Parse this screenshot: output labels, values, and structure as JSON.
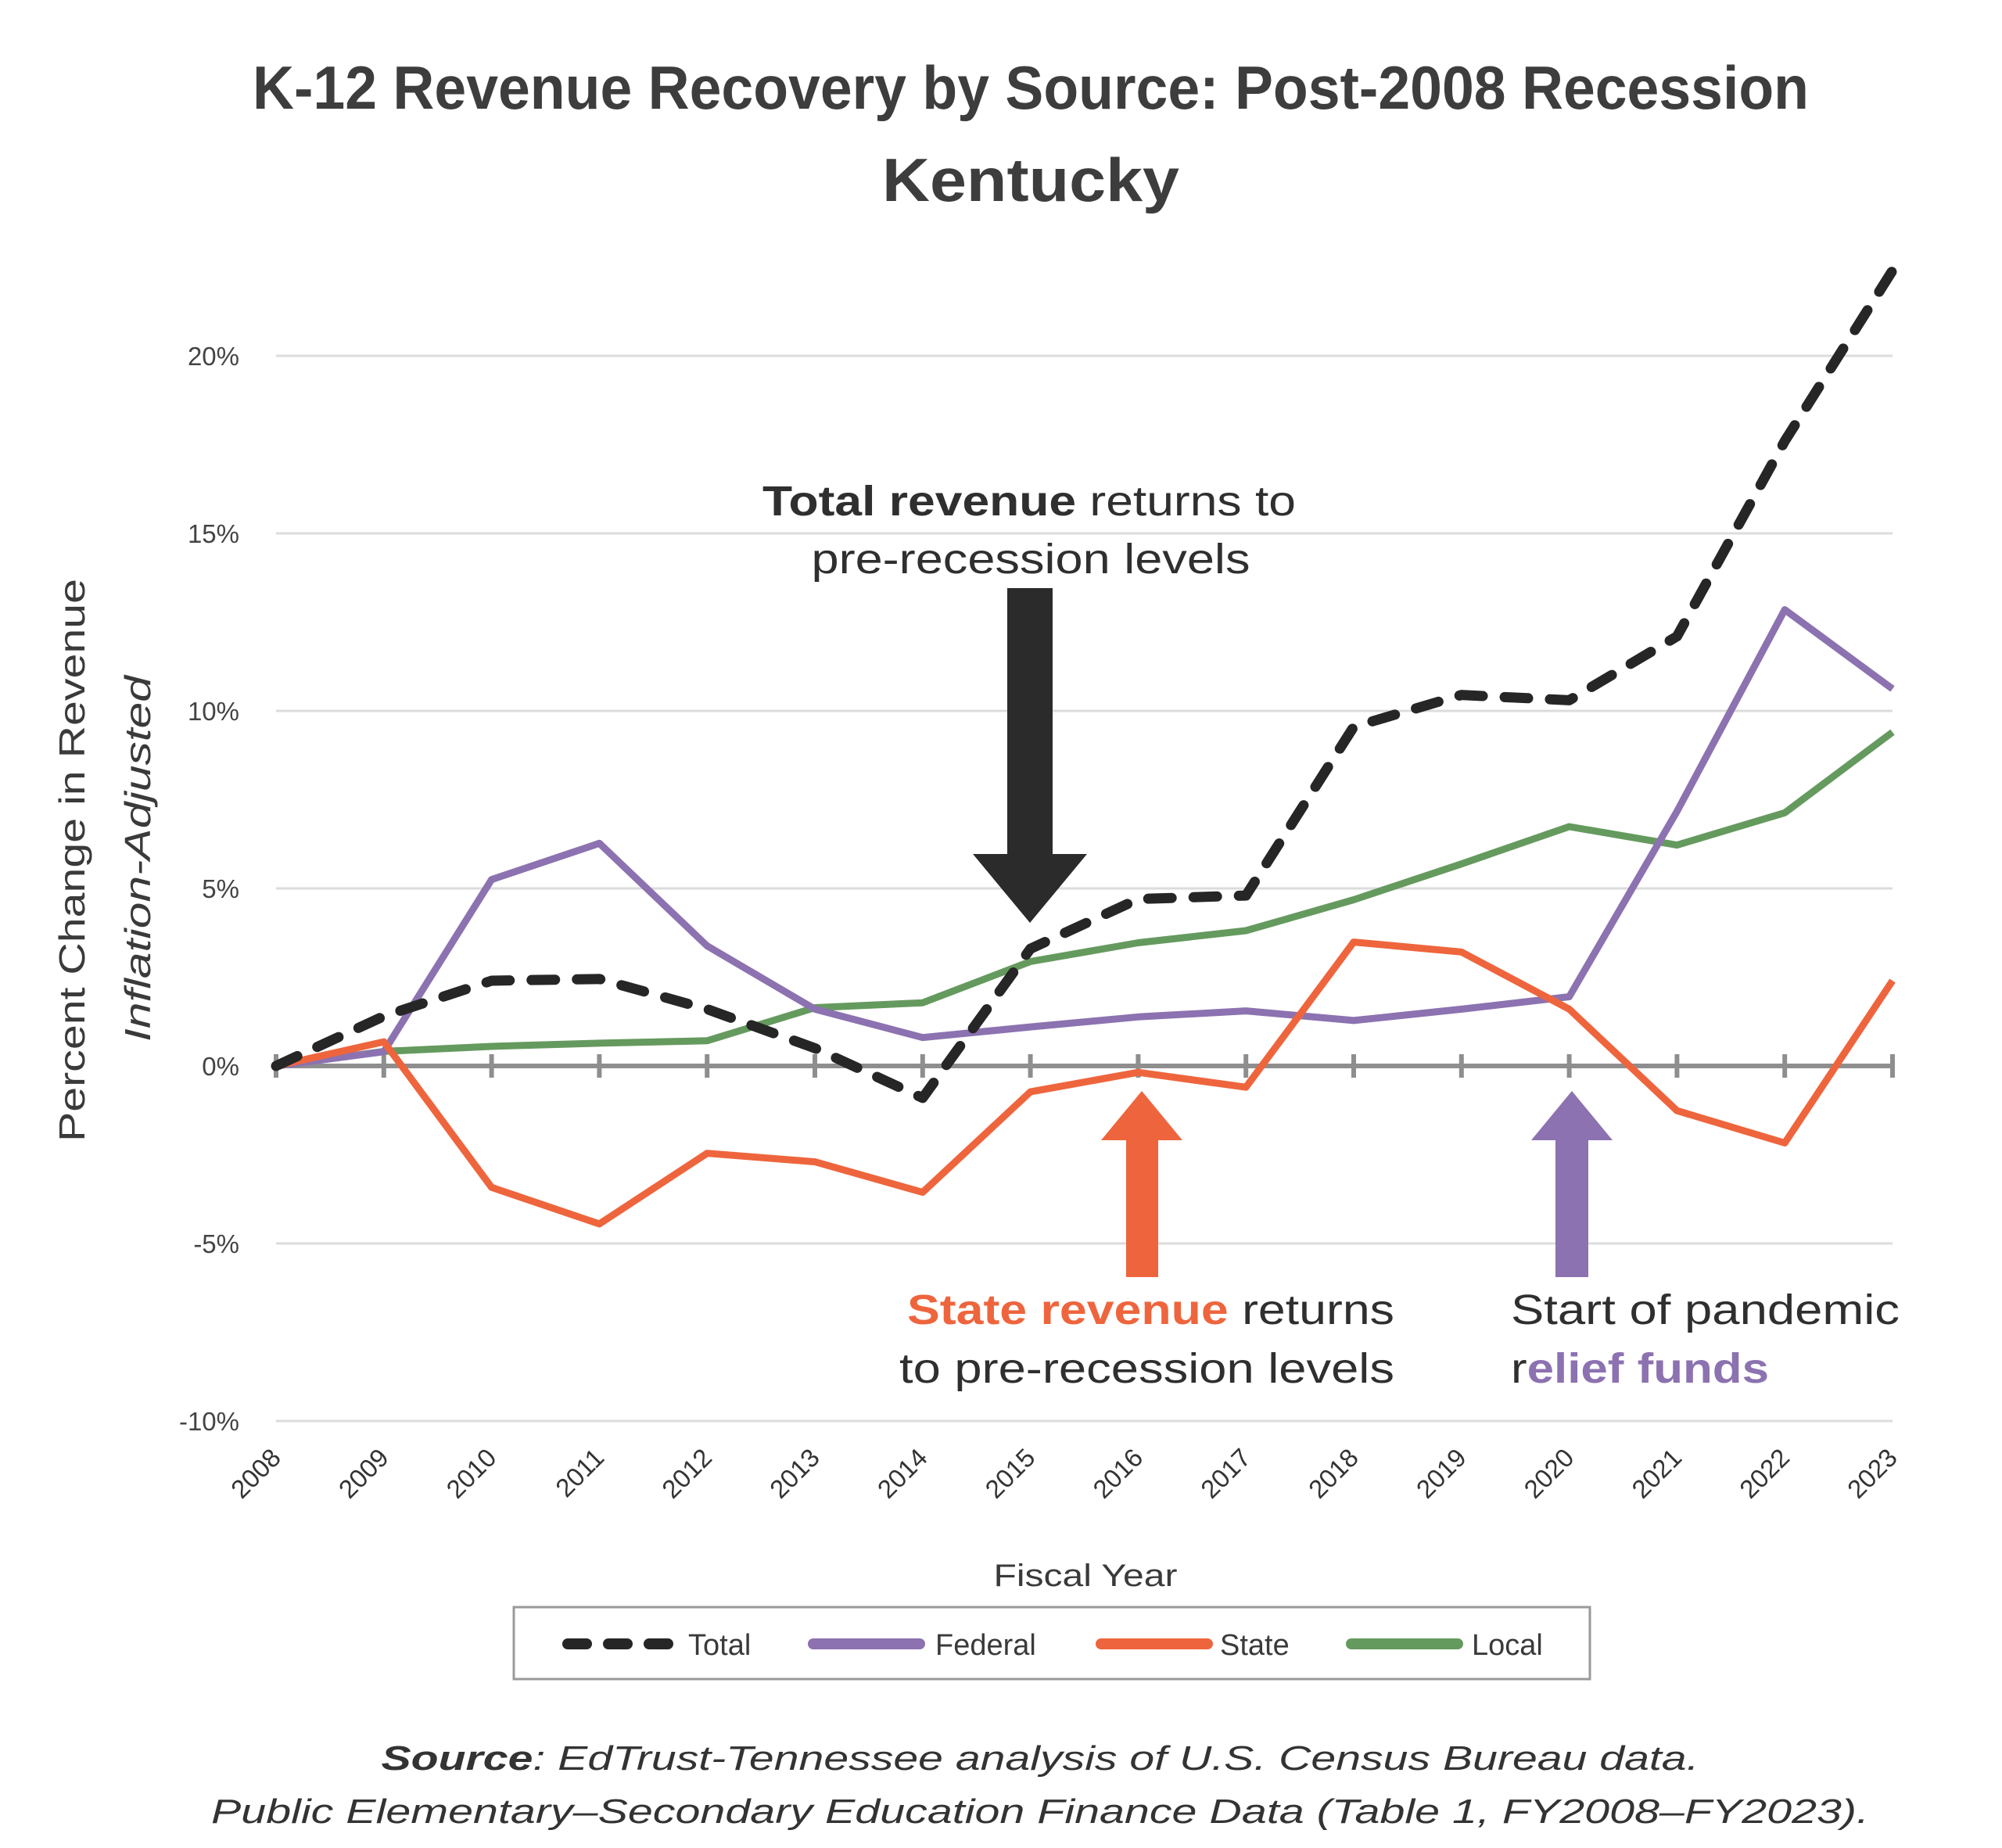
{
  "chart_data": {
    "type": "line",
    "title": "K-12 Revenue Recovery by Source: Post-2008 Recession",
    "subtitle": "Kentucky",
    "xlabel": "Fiscal Year",
    "ylabel": "Percent  Change in Revenue",
    "ylabel_secondary": "Inflation-Adjusted",
    "ylim": [
      -10,
      20
    ],
    "yticks": [
      -10,
      -5,
      0,
      5,
      10,
      15,
      20
    ],
    "ytick_labels": [
      "-10%",
      "-5%",
      "0%",
      "5%",
      "10%",
      "15%",
      "20%"
    ],
    "grid": true,
    "legend_position": "bottom",
    "x": [
      "2008",
      "2009",
      "2010",
      "2011",
      "2012",
      "2013",
      "2014",
      "2015",
      "2016",
      "2017",
      "2018",
      "2019",
      "2020",
      "2021",
      "2022",
      "2023"
    ],
    "series": [
      {
        "name": "Total",
        "color": "#262626",
        "dashed": true,
        "values": [
          0,
          1.4,
          2.4,
          2.45,
          1.6,
          0.5,
          -0.9,
          3.3,
          4.7,
          4.8,
          9.55,
          10.45,
          10.3,
          12.1,
          17.6,
          22.4
        ]
      },
      {
        "name": "Federal",
        "color": "#8c72b0",
        "dashed": false,
        "values": [
          0,
          0.4,
          5.25,
          6.27,
          3.38,
          1.6,
          0.8,
          1.1,
          1.38,
          1.55,
          1.28,
          1.6,
          1.95,
          7.17,
          12.85,
          10.62
        ]
      },
      {
        "name": "State",
        "color": "#ee653d",
        "dashed": false,
        "values": [
          0,
          0.68,
          -3.42,
          -4.45,
          -2.46,
          -2.7,
          -3.56,
          -0.73,
          -0.18,
          -0.6,
          3.49,
          3.21,
          1.6,
          -1.26,
          -2.17,
          2.4
        ]
      },
      {
        "name": "Local",
        "color": "#659a5e",
        "dashed": false,
        "values": [
          0,
          0.41,
          0.55,
          0.64,
          0.71,
          1.64,
          1.78,
          2.94,
          3.47,
          3.81,
          4.68,
          5.69,
          6.74,
          6.22,
          7.13,
          9.4
        ]
      }
    ],
    "annotations": [
      {
        "id": "total",
        "arrow": "down",
        "year": "2015",
        "color": "#2b2b2b",
        "line1_bold": "Total revenue",
        "line1_rest": " returns to",
        "line2": "pre-recession levels"
      },
      {
        "id": "state",
        "arrow": "up",
        "year": "2016",
        "color": "#ee653d",
        "line1_bold": "State revenue",
        "line1_rest": " returns",
        "line2": "to pre-recession levels"
      },
      {
        "id": "pandemic",
        "arrow": "up",
        "year": "2020",
        "color": "#8c72b0",
        "line1": "Start of pandemic",
        "line2_plain": "r",
        "line2_bold": "elief funds"
      }
    ]
  },
  "source": {
    "label": "Source",
    "line1_rest": ": EdTrust-Tennessee analysis of U.S. Census Bureau data.",
    "line2": "Public Elementary–Secondary Education Finance Data (Table 1, FY2008–FY2023)."
  }
}
